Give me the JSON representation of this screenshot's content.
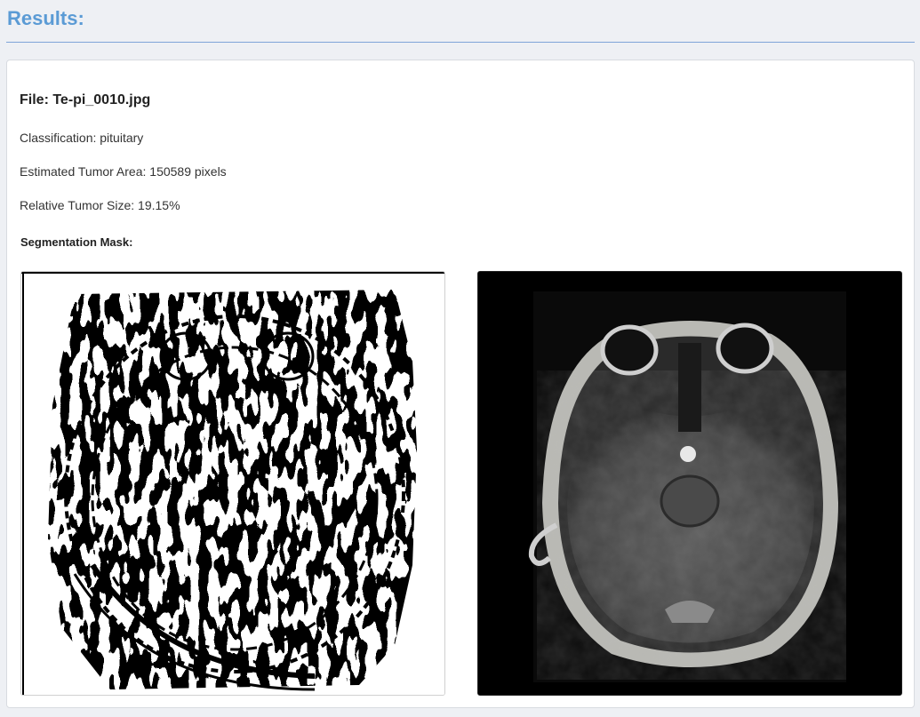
{
  "header": {
    "title": "Results:"
  },
  "result": {
    "file_label": "File: Te-pi_0010.jpg",
    "classification": "Classification: pituitary",
    "tumor_area": "Estimated Tumor Area: 150589 pixels",
    "relative_size": "Relative Tumor Size: 19.15%",
    "mask_heading": "Segmentation Mask:"
  },
  "images": {
    "mask_image": "segmentation-mask",
    "mri_image": "mri-scan"
  },
  "colors": {
    "heading": "#5b9bd5",
    "rule": "#7ea4d8",
    "background": "#eef0f4"
  }
}
